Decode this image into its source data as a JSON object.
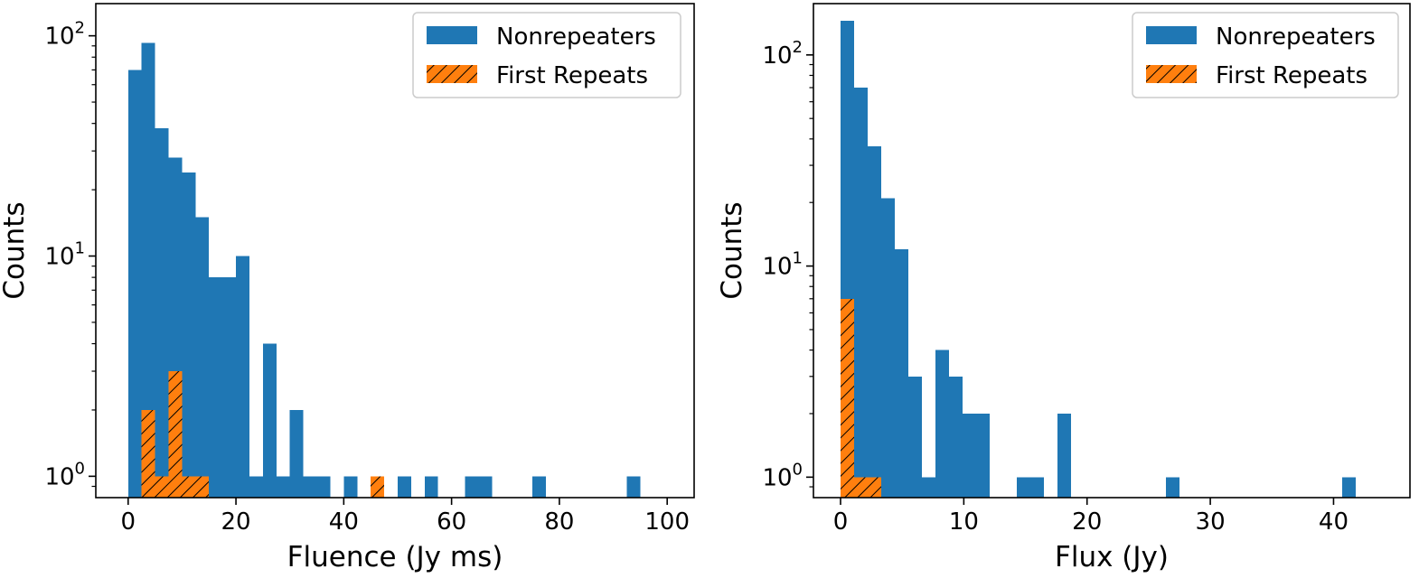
{
  "colors": {
    "nonrepeaters": "#1f77b4",
    "first_repeats": "#ff7f0e",
    "hatch": "#000000",
    "axes": "#000000",
    "legend_border": "#cccccc"
  },
  "chart_data": [
    {
      "type": "bar",
      "subtype": "histogram",
      "xlabel": "Fluence (Jy ms)",
      "ylabel": "Counts",
      "xlim": [
        -6,
        105
      ],
      "ylim": [
        0.8,
        140
      ],
      "yscale": "log",
      "xticks": [
        0,
        20,
        40,
        60,
        80,
        100
      ],
      "xtick_labels": [
        "0",
        "20",
        "40",
        "60",
        "80",
        "100"
      ],
      "yticks": [
        1,
        10,
        100
      ],
      "ytick_labels": [
        {
          "base": "10",
          "exp": "0"
        },
        {
          "base": "10",
          "exp": "1"
        },
        {
          "base": "10",
          "exp": "2"
        }
      ],
      "grid": false,
      "legend": {
        "placement": "top-right",
        "entries": [
          {
            "label": "Nonrepeaters",
            "series": "nonrepeaters"
          },
          {
            "label": "First Repeats",
            "series": "first_repeats"
          }
        ]
      },
      "series": [
        {
          "name": "Nonrepeaters",
          "key": "nonrepeaters",
          "style": "solid",
          "bins": [
            {
              "x0": 0.0,
              "x1": 2.5,
              "count": 70
            },
            {
              "x0": 2.5,
              "x1": 5.0,
              "count": 93
            },
            {
              "x0": 5.0,
              "x1": 7.5,
              "count": 38
            },
            {
              "x0": 7.5,
              "x1": 10.0,
              "count": 28
            },
            {
              "x0": 10.0,
              "x1": 12.5,
              "count": 24
            },
            {
              "x0": 12.5,
              "x1": 15.0,
              "count": 15
            },
            {
              "x0": 15.0,
              "x1": 17.5,
              "count": 8
            },
            {
              "x0": 17.5,
              "x1": 20.0,
              "count": 8
            },
            {
              "x0": 20.0,
              "x1": 22.5,
              "count": 10
            },
            {
              "x0": 22.5,
              "x1": 25.0,
              "count": 1
            },
            {
              "x0": 25.0,
              "x1": 27.5,
              "count": 4
            },
            {
              "x0": 27.5,
              "x1": 30.0,
              "count": 1
            },
            {
              "x0": 30.0,
              "x1": 32.5,
              "count": 2
            },
            {
              "x0": 32.5,
              "x1": 35.0,
              "count": 1
            },
            {
              "x0": 35.0,
              "x1": 37.5,
              "count": 1
            },
            {
              "x0": 40.0,
              "x1": 42.5,
              "count": 1
            },
            {
              "x0": 50.0,
              "x1": 52.5,
              "count": 1
            },
            {
              "x0": 55.0,
              "x1": 57.5,
              "count": 1
            },
            {
              "x0": 62.5,
              "x1": 65.0,
              "count": 1
            },
            {
              "x0": 65.0,
              "x1": 67.5,
              "count": 1
            },
            {
              "x0": 75.0,
              "x1": 77.5,
              "count": 1
            },
            {
              "x0": 92.5,
              "x1": 95.0,
              "count": 1
            }
          ]
        },
        {
          "name": "First Repeats",
          "key": "first_repeats",
          "style": "hatched",
          "bins": [
            {
              "x0": 2.5,
              "x1": 5.0,
              "count": 2
            },
            {
              "x0": 5.0,
              "x1": 7.5,
              "count": 1
            },
            {
              "x0": 7.5,
              "x1": 10.0,
              "count": 3
            },
            {
              "x0": 10.0,
              "x1": 12.5,
              "count": 1
            },
            {
              "x0": 12.5,
              "x1": 15.0,
              "count": 1
            },
            {
              "x0": 45.0,
              "x1": 47.5,
              "count": 1
            }
          ]
        }
      ]
    },
    {
      "type": "bar",
      "subtype": "histogram",
      "xlabel": "Flux (Jy)",
      "ylabel": "Counts",
      "xlim": [
        -2.2,
        46.2
      ],
      "ylim": [
        0.8,
        175
      ],
      "yscale": "log",
      "xticks": [
        0,
        10,
        20,
        30,
        40
      ],
      "xtick_labels": [
        "0",
        "10",
        "20",
        "30",
        "40"
      ],
      "yticks": [
        1,
        10,
        100
      ],
      "ytick_labels": [
        {
          "base": "10",
          "exp": "0"
        },
        {
          "base": "10",
          "exp": "1"
        },
        {
          "base": "10",
          "exp": "2"
        }
      ],
      "grid": false,
      "legend": {
        "placement": "top-right",
        "entries": [
          {
            "label": "Nonrepeaters",
            "series": "nonrepeaters"
          },
          {
            "label": "First Repeats",
            "series": "first_repeats"
          }
        ]
      },
      "series": [
        {
          "name": "Nonrepeaters",
          "key": "nonrepeaters",
          "style": "solid",
          "bins": [
            {
              "x0": 0.0,
              "x1": 1.1,
              "count": 145
            },
            {
              "x0": 1.1,
              "x1": 2.2,
              "count": 70
            },
            {
              "x0": 2.2,
              "x1": 3.3,
              "count": 37
            },
            {
              "x0": 3.3,
              "x1": 4.4,
              "count": 21
            },
            {
              "x0": 4.4,
              "x1": 5.5,
              "count": 12
            },
            {
              "x0": 5.5,
              "x1": 6.6,
              "count": 3
            },
            {
              "x0": 6.6,
              "x1": 7.7,
              "count": 1
            },
            {
              "x0": 7.7,
              "x1": 8.8,
              "count": 4
            },
            {
              "x0": 8.8,
              "x1": 9.9,
              "count": 3
            },
            {
              "x0": 9.9,
              "x1": 11.0,
              "count": 2
            },
            {
              "x0": 11.0,
              "x1": 12.1,
              "count": 2
            },
            {
              "x0": 14.3,
              "x1": 15.4,
              "count": 1
            },
            {
              "x0": 15.4,
              "x1": 16.5,
              "count": 1
            },
            {
              "x0": 17.6,
              "x1": 18.7,
              "count": 2
            },
            {
              "x0": 26.4,
              "x1": 27.5,
              "count": 1
            },
            {
              "x0": 40.7,
              "x1": 41.8,
              "count": 1
            }
          ]
        },
        {
          "name": "First Repeats",
          "key": "first_repeats",
          "style": "hatched",
          "bins": [
            {
              "x0": 0.0,
              "x1": 1.1,
              "count": 7
            },
            {
              "x0": 1.1,
              "x1": 2.2,
              "count": 1
            },
            {
              "x0": 2.2,
              "x1": 3.3,
              "count": 1
            }
          ]
        }
      ]
    }
  ]
}
